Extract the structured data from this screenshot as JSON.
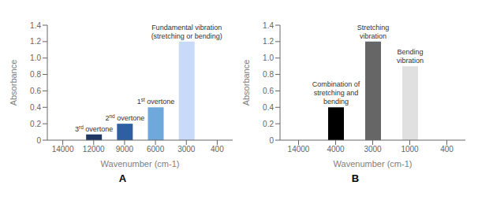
{
  "chart_data": [
    {
      "type": "bar",
      "title": "A",
      "categories": [
        "14000",
        "12000",
        "9000",
        "6000",
        "3000",
        "400"
      ],
      "values": [
        null,
        0.07,
        0.2,
        0.4,
        1.2,
        null
      ],
      "colors": [
        null,
        "#1f3864",
        "#2e5fa3",
        "#6fa8dc",
        "#c9daf8",
        null
      ],
      "annotations": [
        null,
        "3rd overtone",
        "2nd overtone",
        "1st overtone",
        "Fundamental vibration\n(stretching or bending)",
        null
      ],
      "xlabel": "Wavenumber (cm-1)",
      "ylabel": "Absorbance",
      "ylim": [
        0,
        1.4
      ],
      "yticks": [
        0,
        0.2,
        0.4,
        0.6,
        0.8,
        {
          "value": 1.0,
          "label": "1.0"
        },
        1.2,
        1.4
      ],
      "grid": false
    },
    {
      "type": "bar",
      "title": "B",
      "categories": [
        "14000",
        "4000",
        "3000",
        "1000",
        "400"
      ],
      "values": [
        null,
        0.4,
        1.2,
        0.9,
        null
      ],
      "colors": [
        null,
        "#000000",
        "#666666",
        "#e0e0e0",
        null
      ],
      "annotations": [
        null,
        "Combination of\nstretching and\nbending",
        "Stretching\nvibration",
        "Bending\nvibration",
        null
      ],
      "xlabel": "Wavenumber (cm-1)",
      "ylabel": "Absorbance",
      "ylim": [
        0,
        1.4
      ],
      "yticks": [
        0,
        0.2,
        0.4,
        0.6,
        0.8,
        {
          "value": 1.0,
          "label": "1.0"
        },
        1.2,
        1.4
      ],
      "grid": false
    }
  ]
}
